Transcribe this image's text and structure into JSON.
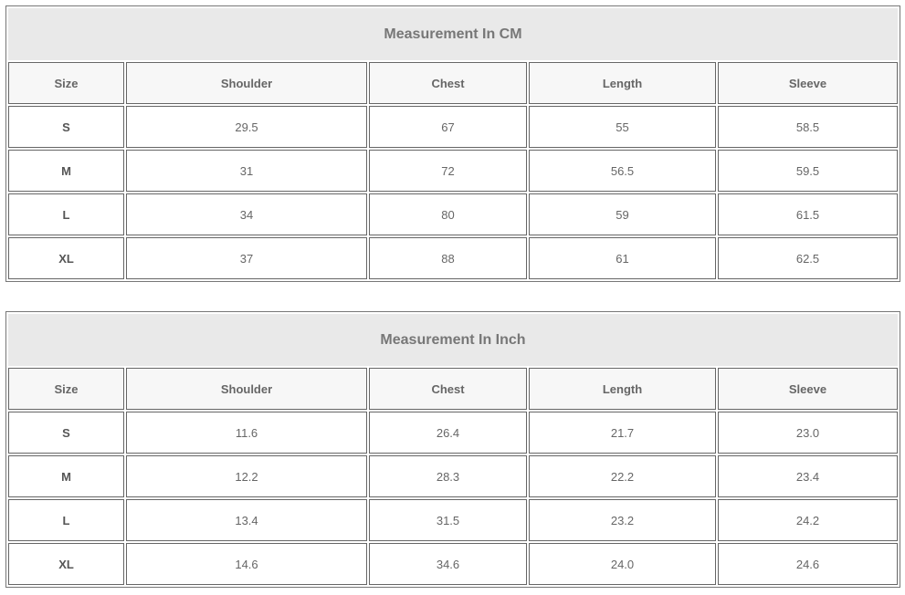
{
  "tables": [
    {
      "title": "Measurement In CM",
      "headers": [
        "Size",
        "Shoulder",
        "Chest",
        "Length",
        "Sleeve"
      ],
      "rows": [
        [
          "S",
          "29.5",
          "67",
          "55",
          "58.5"
        ],
        [
          "M",
          "31",
          "72",
          "56.5",
          "59.5"
        ],
        [
          "L",
          "34",
          "80",
          "59",
          "61.5"
        ],
        [
          "XL",
          "37",
          "88",
          "61",
          "62.5"
        ]
      ]
    },
    {
      "title": "Measurement In Inch",
      "headers": [
        "Size",
        "Shoulder",
        "Chest",
        "Length",
        "Sleeve"
      ],
      "rows": [
        [
          "S",
          "11.6",
          "26.4",
          "21.7",
          "23.0"
        ],
        [
          "M",
          "12.2",
          "28.3",
          "22.2",
          "23.4"
        ],
        [
          "L",
          "13.4",
          "31.5",
          "23.2",
          "24.2"
        ],
        [
          "XL",
          "14.6",
          "34.6",
          "24.0",
          "24.6"
        ]
      ]
    }
  ]
}
